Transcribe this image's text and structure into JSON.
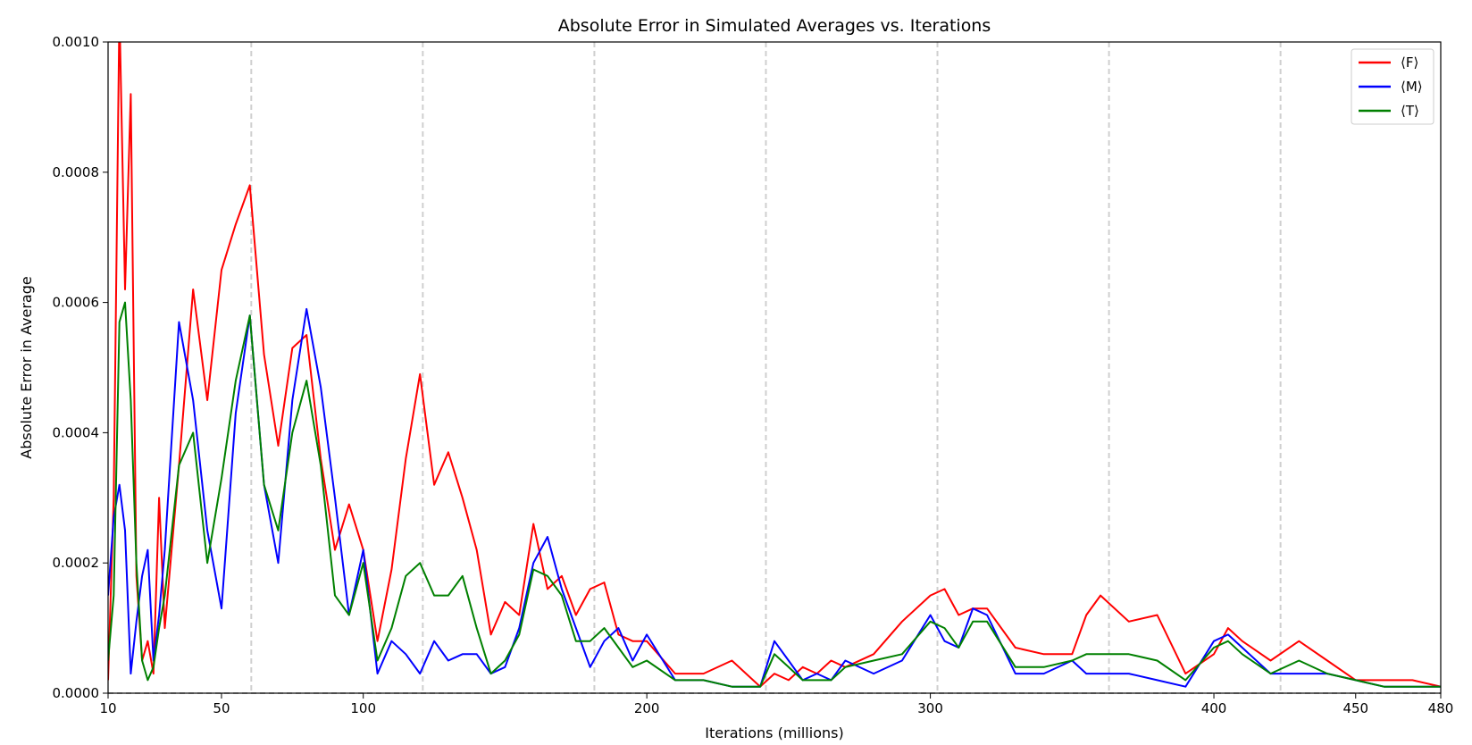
{
  "chart_data": {
    "type": "line",
    "title": "Absolute Error in Simulated Averages vs. Iterations",
    "xlabel": "Iterations (millions)",
    "ylabel": "Absolute Error in Average",
    "xlim": [
      10,
      480
    ],
    "ylim": [
      0,
      0.001
    ],
    "x_ticks": [
      10,
      50,
      100,
      200,
      300,
      400,
      450,
      480
    ],
    "x_tick_labels": [
      "10",
      "50",
      "100",
      "200",
      "300",
      "400",
      "450",
      "480"
    ],
    "y_ticks": [
      0,
      0.0002,
      0.0004,
      0.0006,
      0.0008,
      0.001
    ],
    "y_tick_labels": [
      "0.0000",
      "0.0002",
      "0.0004",
      "0.0006",
      "0.0008",
      "0.0010"
    ],
    "vertical_dashed_lines": [
      60.5,
      121,
      181.5,
      242,
      302.5,
      363,
      423.5
    ],
    "horizontal_dashed_line": 0,
    "legend_position": "top-right",
    "x": [
      10,
      12,
      14,
      16,
      18,
      20,
      22,
      24,
      26,
      28,
      30,
      35,
      40,
      45,
      50,
      55,
      60,
      65,
      70,
      75,
      80,
      85,
      90,
      95,
      100,
      105,
      110,
      115,
      120,
      125,
      130,
      135,
      140,
      145,
      150,
      155,
      160,
      165,
      170,
      175,
      180,
      185,
      190,
      195,
      200,
      210,
      220,
      230,
      240,
      245,
      250,
      255,
      260,
      265,
      270,
      280,
      290,
      300,
      305,
      310,
      315,
      320,
      330,
      340,
      350,
      355,
      360,
      370,
      380,
      390,
      400,
      405,
      410,
      420,
      430,
      440,
      450,
      460,
      470,
      480
    ],
    "series": [
      {
        "name": "⟨F⟩",
        "color": "#ff0000",
        "values": [
          2e-05,
          0.0003,
          0.00105,
          0.00062,
          0.00092,
          0.00018,
          5e-05,
          8e-05,
          3e-05,
          0.0003,
          0.0001,
          0.00035,
          0.00062,
          0.00045,
          0.00065,
          0.00072,
          0.00078,
          0.00052,
          0.00038,
          0.00053,
          0.00055,
          0.00036,
          0.00022,
          0.00029,
          0.00022,
          8e-05,
          0.00019,
          0.00036,
          0.00049,
          0.00032,
          0.00037,
          0.0003,
          0.00022,
          9e-05,
          0.00014,
          0.00012,
          0.00026,
          0.00016,
          0.00018,
          0.00012,
          0.00016,
          0.00017,
          9e-05,
          8e-05,
          8e-05,
          3e-05,
          3e-05,
          5e-05,
          1e-05,
          3e-05,
          2e-05,
          4e-05,
          3e-05,
          5e-05,
          4e-05,
          6e-05,
          0.00011,
          0.00015,
          0.00016,
          0.00012,
          0.00013,
          0.00013,
          7e-05,
          6e-05,
          6e-05,
          0.00012,
          0.00015,
          0.00011,
          0.00012,
          3e-05,
          6e-05,
          0.0001,
          8e-05,
          5e-05,
          8e-05,
          5e-05,
          2e-05,
          2e-05,
          2e-05,
          1e-05
        ]
      },
      {
        "name": "⟨M⟩",
        "color": "#0000ff",
        "values": [
          0.00015,
          0.00027,
          0.00032,
          0.00025,
          3e-05,
          0.00011,
          0.00018,
          0.00022,
          5e-05,
          0.00012,
          0.00022,
          0.00057,
          0.00045,
          0.00025,
          0.00013,
          0.00043,
          0.00058,
          0.00032,
          0.0002,
          0.00045,
          0.00059,
          0.00047,
          0.0003,
          0.00012,
          0.00022,
          3e-05,
          8e-05,
          6e-05,
          3e-05,
          8e-05,
          5e-05,
          6e-05,
          6e-05,
          3e-05,
          4e-05,
          0.0001,
          0.0002,
          0.00024,
          0.00016,
          0.0001,
          4e-05,
          8e-05,
          0.0001,
          5e-05,
          9e-05,
          2e-05,
          2e-05,
          1e-05,
          1e-05,
          8e-05,
          5e-05,
          2e-05,
          3e-05,
          2e-05,
          5e-05,
          3e-05,
          5e-05,
          0.00012,
          8e-05,
          7e-05,
          0.00013,
          0.00012,
          3e-05,
          3e-05,
          5e-05,
          3e-05,
          3e-05,
          3e-05,
          2e-05,
          1e-05,
          8e-05,
          9e-05,
          7e-05,
          3e-05,
          3e-05,
          3e-05,
          2e-05,
          1e-05,
          1e-05,
          1e-05
        ]
      },
      {
        "name": "⟨T⟩",
        "color": "#008000",
        "values": [
          5e-05,
          0.00015,
          0.00057,
          0.0006,
          0.00045,
          0.0002,
          5e-05,
          2e-05,
          4e-05,
          0.0001,
          0.00015,
          0.00035,
          0.0004,
          0.0002,
          0.00033,
          0.00048,
          0.00058,
          0.00032,
          0.00025,
          0.0004,
          0.00048,
          0.00035,
          0.00015,
          0.00012,
          0.0002,
          5e-05,
          0.0001,
          0.00018,
          0.0002,
          0.00015,
          0.00015,
          0.00018,
          0.0001,
          3e-05,
          5e-05,
          9e-05,
          0.00019,
          0.00018,
          0.00015,
          8e-05,
          8e-05,
          0.0001,
          7e-05,
          4e-05,
          5e-05,
          2e-05,
          2e-05,
          1e-05,
          1e-05,
          6e-05,
          4e-05,
          2e-05,
          2e-05,
          2e-05,
          4e-05,
          5e-05,
          6e-05,
          0.00011,
          0.0001,
          7e-05,
          0.00011,
          0.00011,
          4e-05,
          4e-05,
          5e-05,
          6e-05,
          6e-05,
          6e-05,
          5e-05,
          2e-05,
          7e-05,
          8e-05,
          6e-05,
          3e-05,
          5e-05,
          3e-05,
          2e-05,
          1e-05,
          1e-05,
          1e-05
        ]
      }
    ]
  }
}
